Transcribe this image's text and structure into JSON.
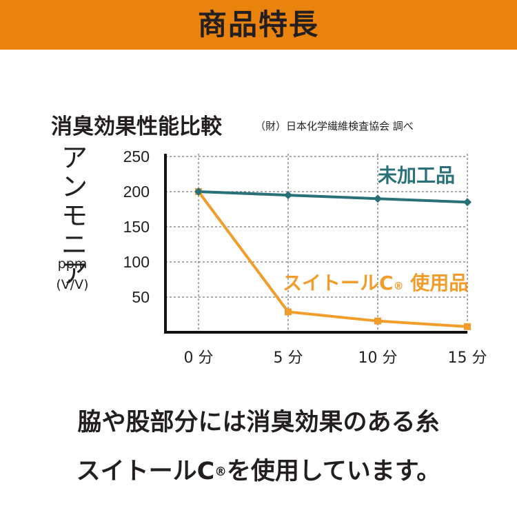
{
  "banner": {
    "title": "商品特長"
  },
  "chart_data": {
    "type": "line",
    "title": "消臭効果性能比較",
    "source": "（財）日本化学繊維検査協会 調べ",
    "ylabel_chars": [
      "ア",
      "ン",
      "モ",
      "ニ",
      "ア"
    ],
    "yunit": "ppm",
    "yunit2": "(V/V)",
    "x": [
      0,
      5,
      10,
      15
    ],
    "xtick_labels": [
      "0 分",
      "5 分",
      "10 分",
      "15 分"
    ],
    "yticks": [
      50,
      100,
      150,
      200,
      250
    ],
    "ylim": [
      0,
      250
    ],
    "grid": true,
    "series": [
      {
        "name": "未加工品",
        "values": [
          200,
          195,
          190,
          185
        ],
        "color": "#2a7079",
        "marker": "diamond"
      },
      {
        "name": "スイトールC",
        "name_mark": "®",
        "name_suffix": " 使用品",
        "values": [
          200,
          29,
          16,
          8
        ],
        "color": "#f29d2b",
        "marker": "square"
      }
    ]
  },
  "caption": {
    "line1": "脇や股部分には消臭効果のある糸",
    "line2_a": "スイトールC",
    "line2_mark": "®",
    "line2_b": "を使用しています。"
  }
}
